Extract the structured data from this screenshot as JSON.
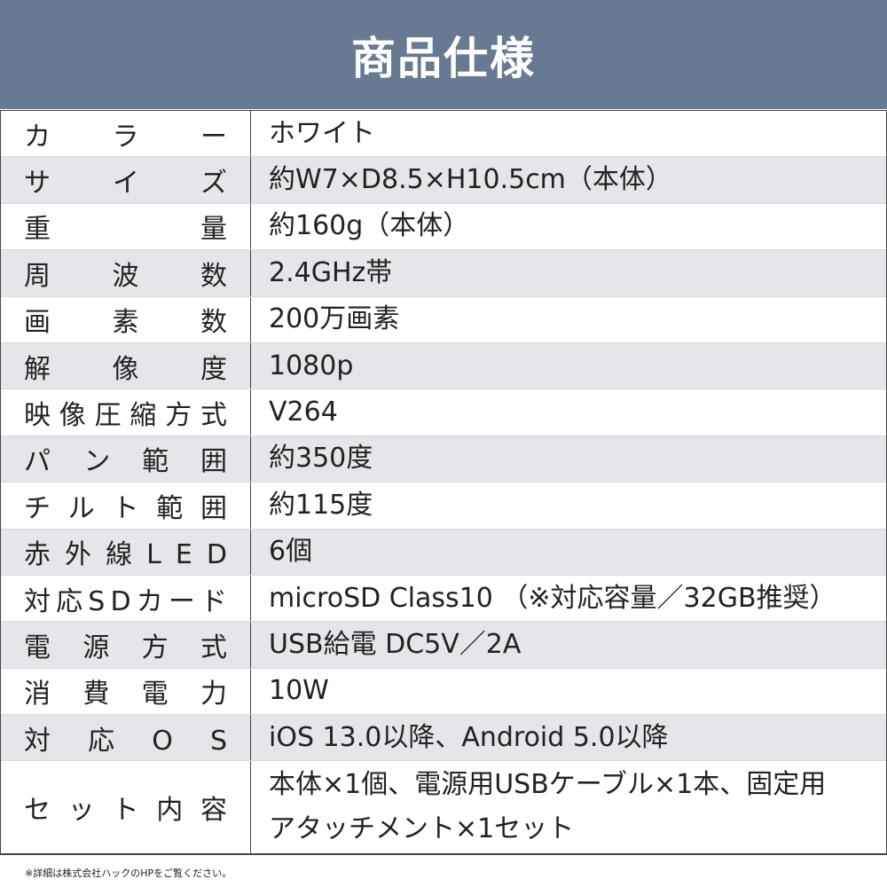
{
  "header": {
    "title": "商品仕様"
  },
  "table": {
    "rows": [
      {
        "label": "カラー",
        "value": "ホワイト"
      },
      {
        "label": "サイズ",
        "value": "約W7×D8.5×H10.5cm（本体）"
      },
      {
        "label": "重量",
        "value": "約160g（本体）"
      },
      {
        "label": "周波数",
        "value": "2.4GHz帯"
      },
      {
        "label": "画素数",
        "value": "200万画素"
      },
      {
        "label": "解像度",
        "value": "1080p"
      },
      {
        "label": "映像圧縮方式",
        "value": "V264"
      },
      {
        "label": "パン範囲",
        "value": "約350度"
      },
      {
        "label": "チルト範囲",
        "value": "約115度"
      },
      {
        "label": "赤外線LED",
        "value": "6個"
      },
      {
        "label": "対応SDカード",
        "value": "microSD Class10 （※対応容量／32GB推奨）"
      },
      {
        "label": "電源方式",
        "value": "USB給電 DC5V／2A"
      },
      {
        "label": "消費電力",
        "value": "10W"
      },
      {
        "label": "対応OS",
        "value": "iOS 13.0以降、Android 5.0以降"
      },
      {
        "label": "セット内容",
        "value": [
          "本体×1個、電源用USBケーブル×1本、固定用",
          "アタッチメント×1セット"
        ]
      }
    ]
  },
  "footnote": "※詳細は株式会社ハックのHPをご覧ください。"
}
